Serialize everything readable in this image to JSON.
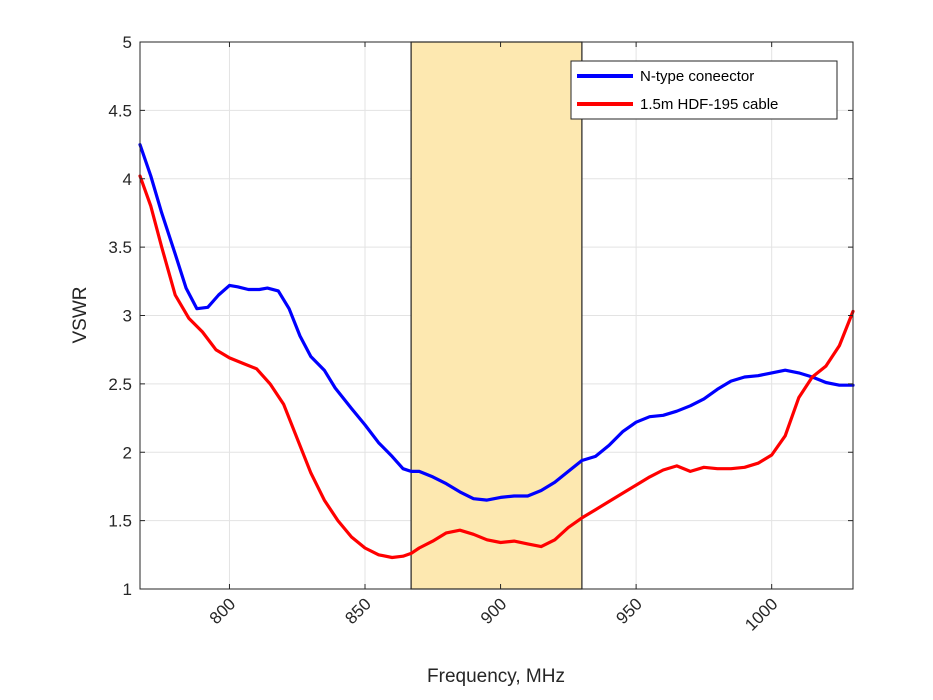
{
  "chart_data": {
    "type": "line",
    "xlabel": "Frequency, MHz",
    "ylabel": "VSWR",
    "xlim": [
      767,
      1030
    ],
    "ylim": [
      1,
      5
    ],
    "grid": true,
    "x_ticks": [
      800,
      850,
      900,
      950,
      1000
    ],
    "y_ticks": [
      1,
      1.5,
      2,
      2.5,
      3,
      3.5,
      4,
      4.5,
      5
    ],
    "x_tick_labels": [
      "800",
      "850",
      "900",
      "950",
      "1000"
    ],
    "y_tick_labels": [
      "1",
      "1.5",
      "2",
      "2.5",
      "3",
      "3.5",
      "4",
      "4.5",
      "5"
    ],
    "legend_position": "top-right",
    "highlight_band": {
      "x_range": [
        867,
        930
      ],
      "color": "#fde8b0"
    },
    "series": [
      {
        "name": "N-type coneector",
        "color": "#0000ff",
        "x": [
          767,
          771,
          775,
          780,
          784,
          788,
          792,
          796,
          800,
          803,
          807,
          811,
          814,
          818,
          822,
          826,
          830,
          835,
          839,
          845,
          850,
          855,
          860,
          864,
          867,
          870,
          875,
          880,
          885,
          890,
          895,
          900,
          905,
          910,
          915,
          920,
          925,
          930,
          935,
          940,
          945,
          950,
          955,
          960,
          965,
          970,
          975,
          980,
          985,
          990,
          995,
          1000,
          1005,
          1010,
          1015,
          1020,
          1025,
          1030
        ],
        "y": [
          4.25,
          4.02,
          3.75,
          3.45,
          3.2,
          3.05,
          3.06,
          3.15,
          3.22,
          3.21,
          3.19,
          3.19,
          3.2,
          3.18,
          3.05,
          2.85,
          2.7,
          2.6,
          2.47,
          2.32,
          2.2,
          2.07,
          1.97,
          1.88,
          1.86,
          1.86,
          1.82,
          1.77,
          1.71,
          1.66,
          1.65,
          1.67,
          1.68,
          1.68,
          1.72,
          1.78,
          1.86,
          1.94,
          1.97,
          2.05,
          2.15,
          2.22,
          2.26,
          2.27,
          2.3,
          2.34,
          2.39,
          2.46,
          2.52,
          2.55,
          2.56,
          2.58,
          2.6,
          2.58,
          2.55,
          2.51,
          2.49,
          2.49
        ]
      },
      {
        "name": "1.5m HDF-195 cable",
        "color": "#ff0000",
        "x": [
          767,
          771,
          775,
          780,
          785,
          790,
          795,
          800,
          805,
          810,
          815,
          820,
          825,
          830,
          835,
          840,
          845,
          850,
          855,
          860,
          864,
          867,
          870,
          875,
          880,
          885,
          890,
          895,
          900,
          905,
          910,
          915,
          920,
          925,
          930,
          935,
          940,
          945,
          950,
          955,
          960,
          965,
          970,
          975,
          980,
          985,
          990,
          995,
          1000,
          1005,
          1010,
          1015,
          1020,
          1025,
          1030
        ],
        "y": [
          4.02,
          3.8,
          3.5,
          3.15,
          2.98,
          2.88,
          2.75,
          2.69,
          2.65,
          2.61,
          2.5,
          2.35,
          2.1,
          1.85,
          1.65,
          1.5,
          1.38,
          1.3,
          1.25,
          1.23,
          1.24,
          1.26,
          1.3,
          1.35,
          1.41,
          1.43,
          1.4,
          1.36,
          1.34,
          1.35,
          1.33,
          1.31,
          1.36,
          1.45,
          1.52,
          1.58,
          1.64,
          1.7,
          1.76,
          1.82,
          1.87,
          1.9,
          1.86,
          1.89,
          1.88,
          1.88,
          1.89,
          1.92,
          1.98,
          2.12,
          2.4,
          2.55,
          2.63,
          2.78,
          3.03
        ]
      }
    ]
  }
}
